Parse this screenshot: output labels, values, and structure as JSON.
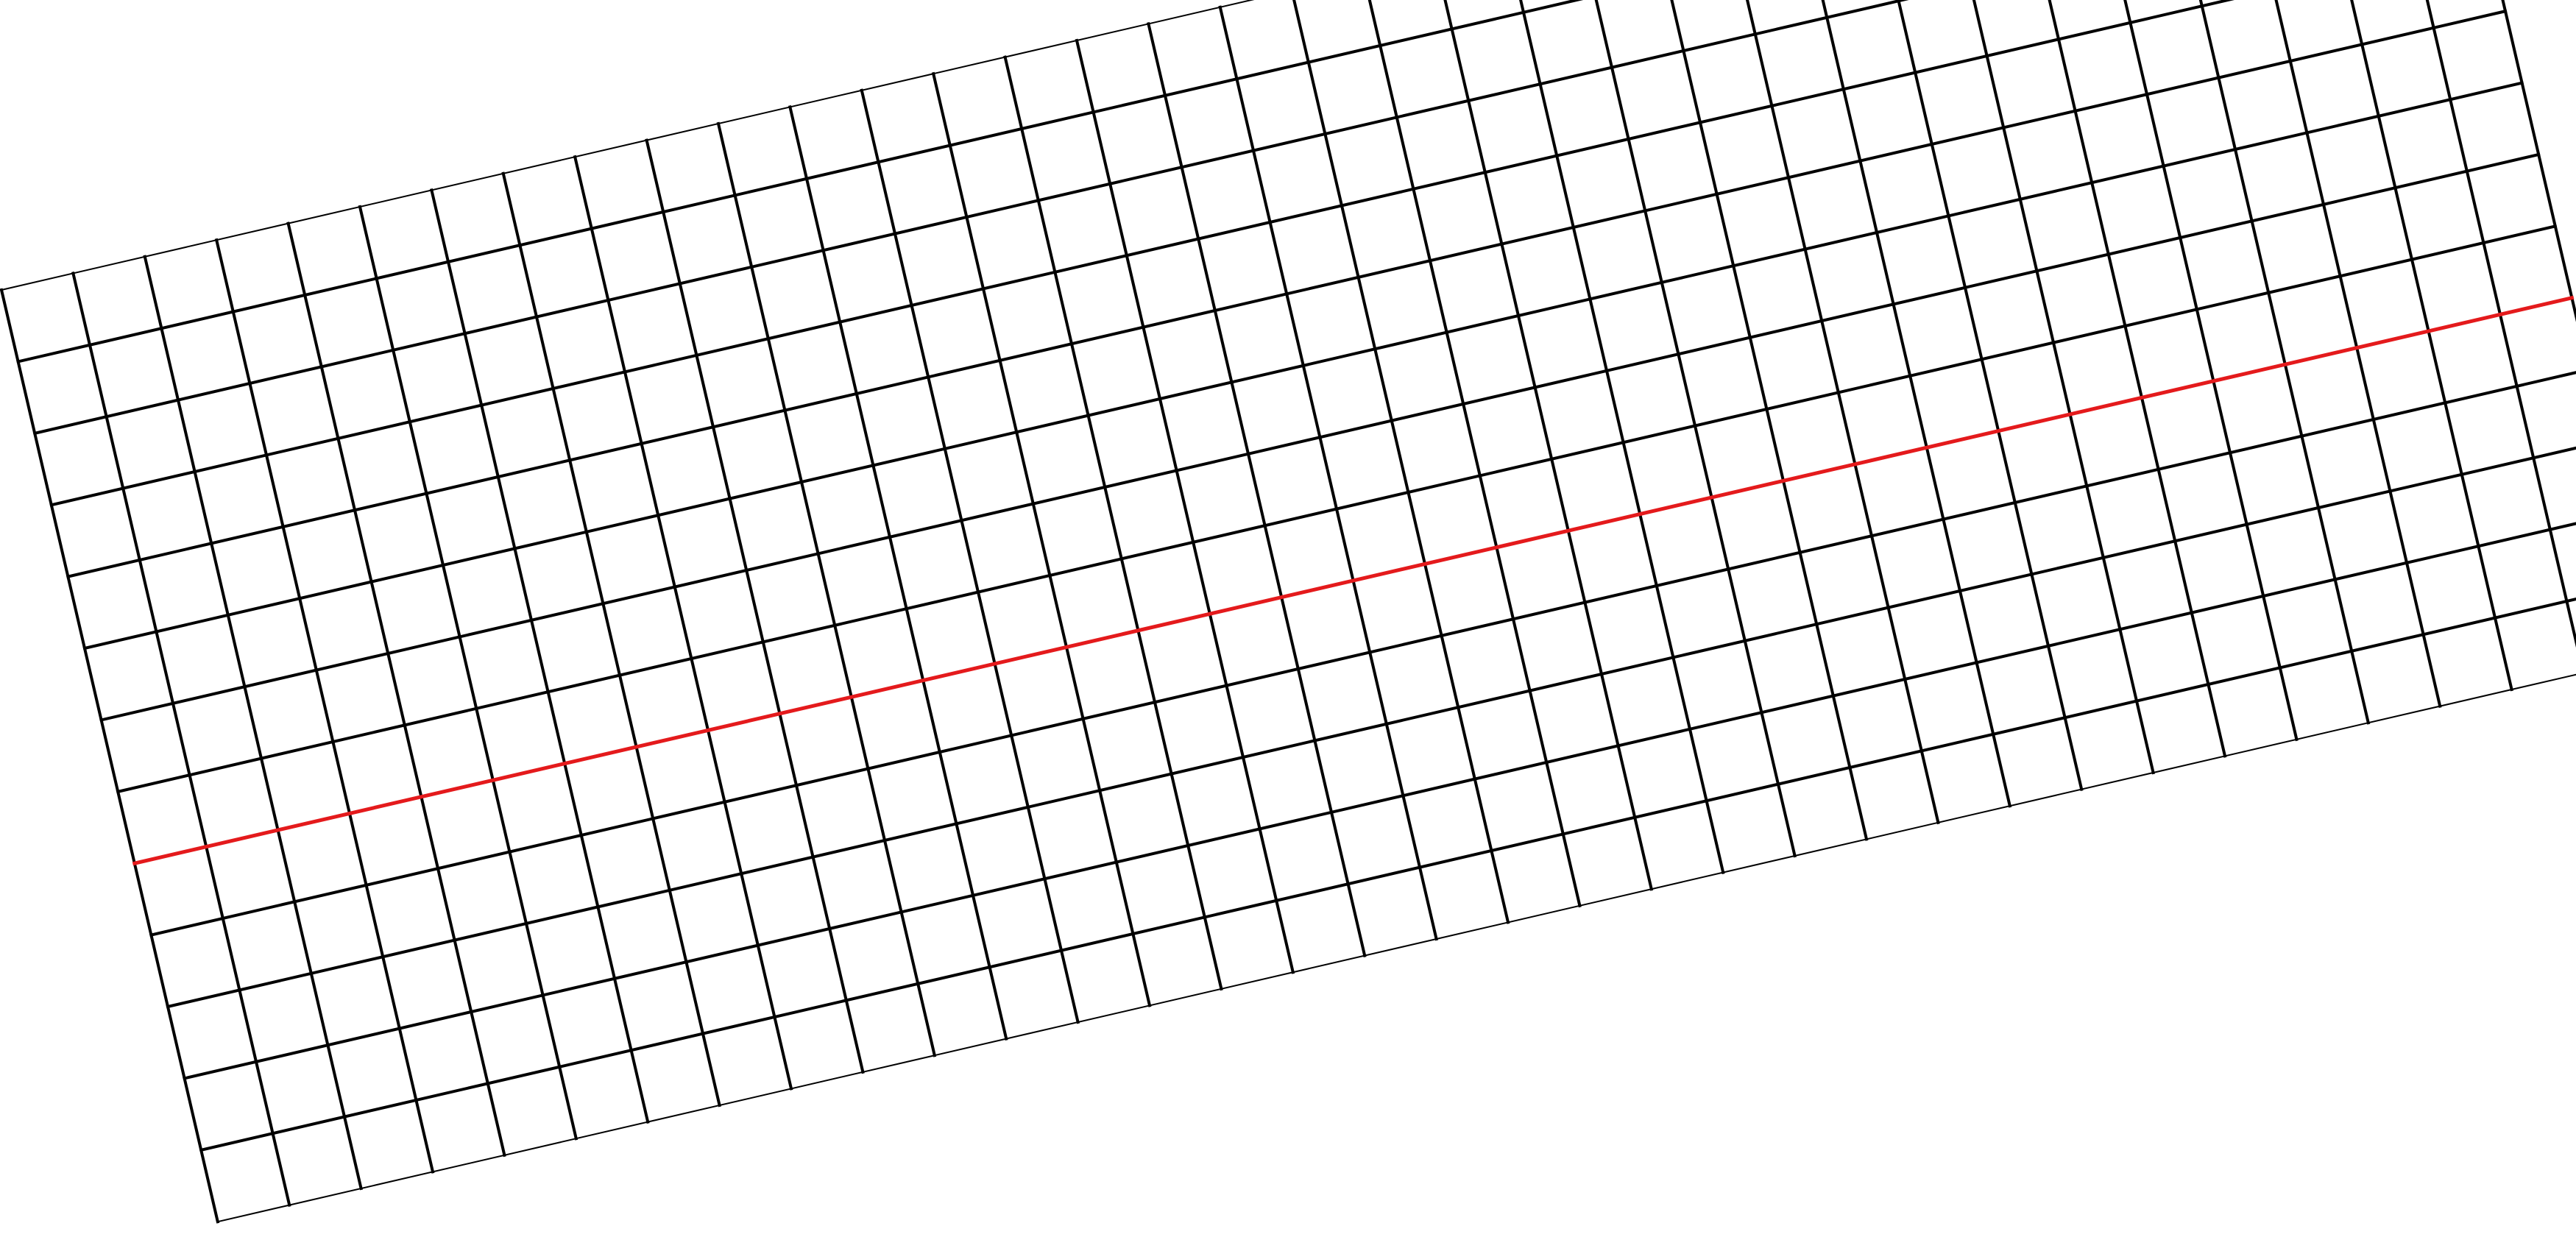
{
  "diagram": {
    "type": "tilted-grid",
    "grid_color": "#000000",
    "highlight_color": "#e41a1c",
    "background_color": "#ffffff",
    "columns": 34,
    "rows": 13,
    "highlighted_row_line": 8
  }
}
